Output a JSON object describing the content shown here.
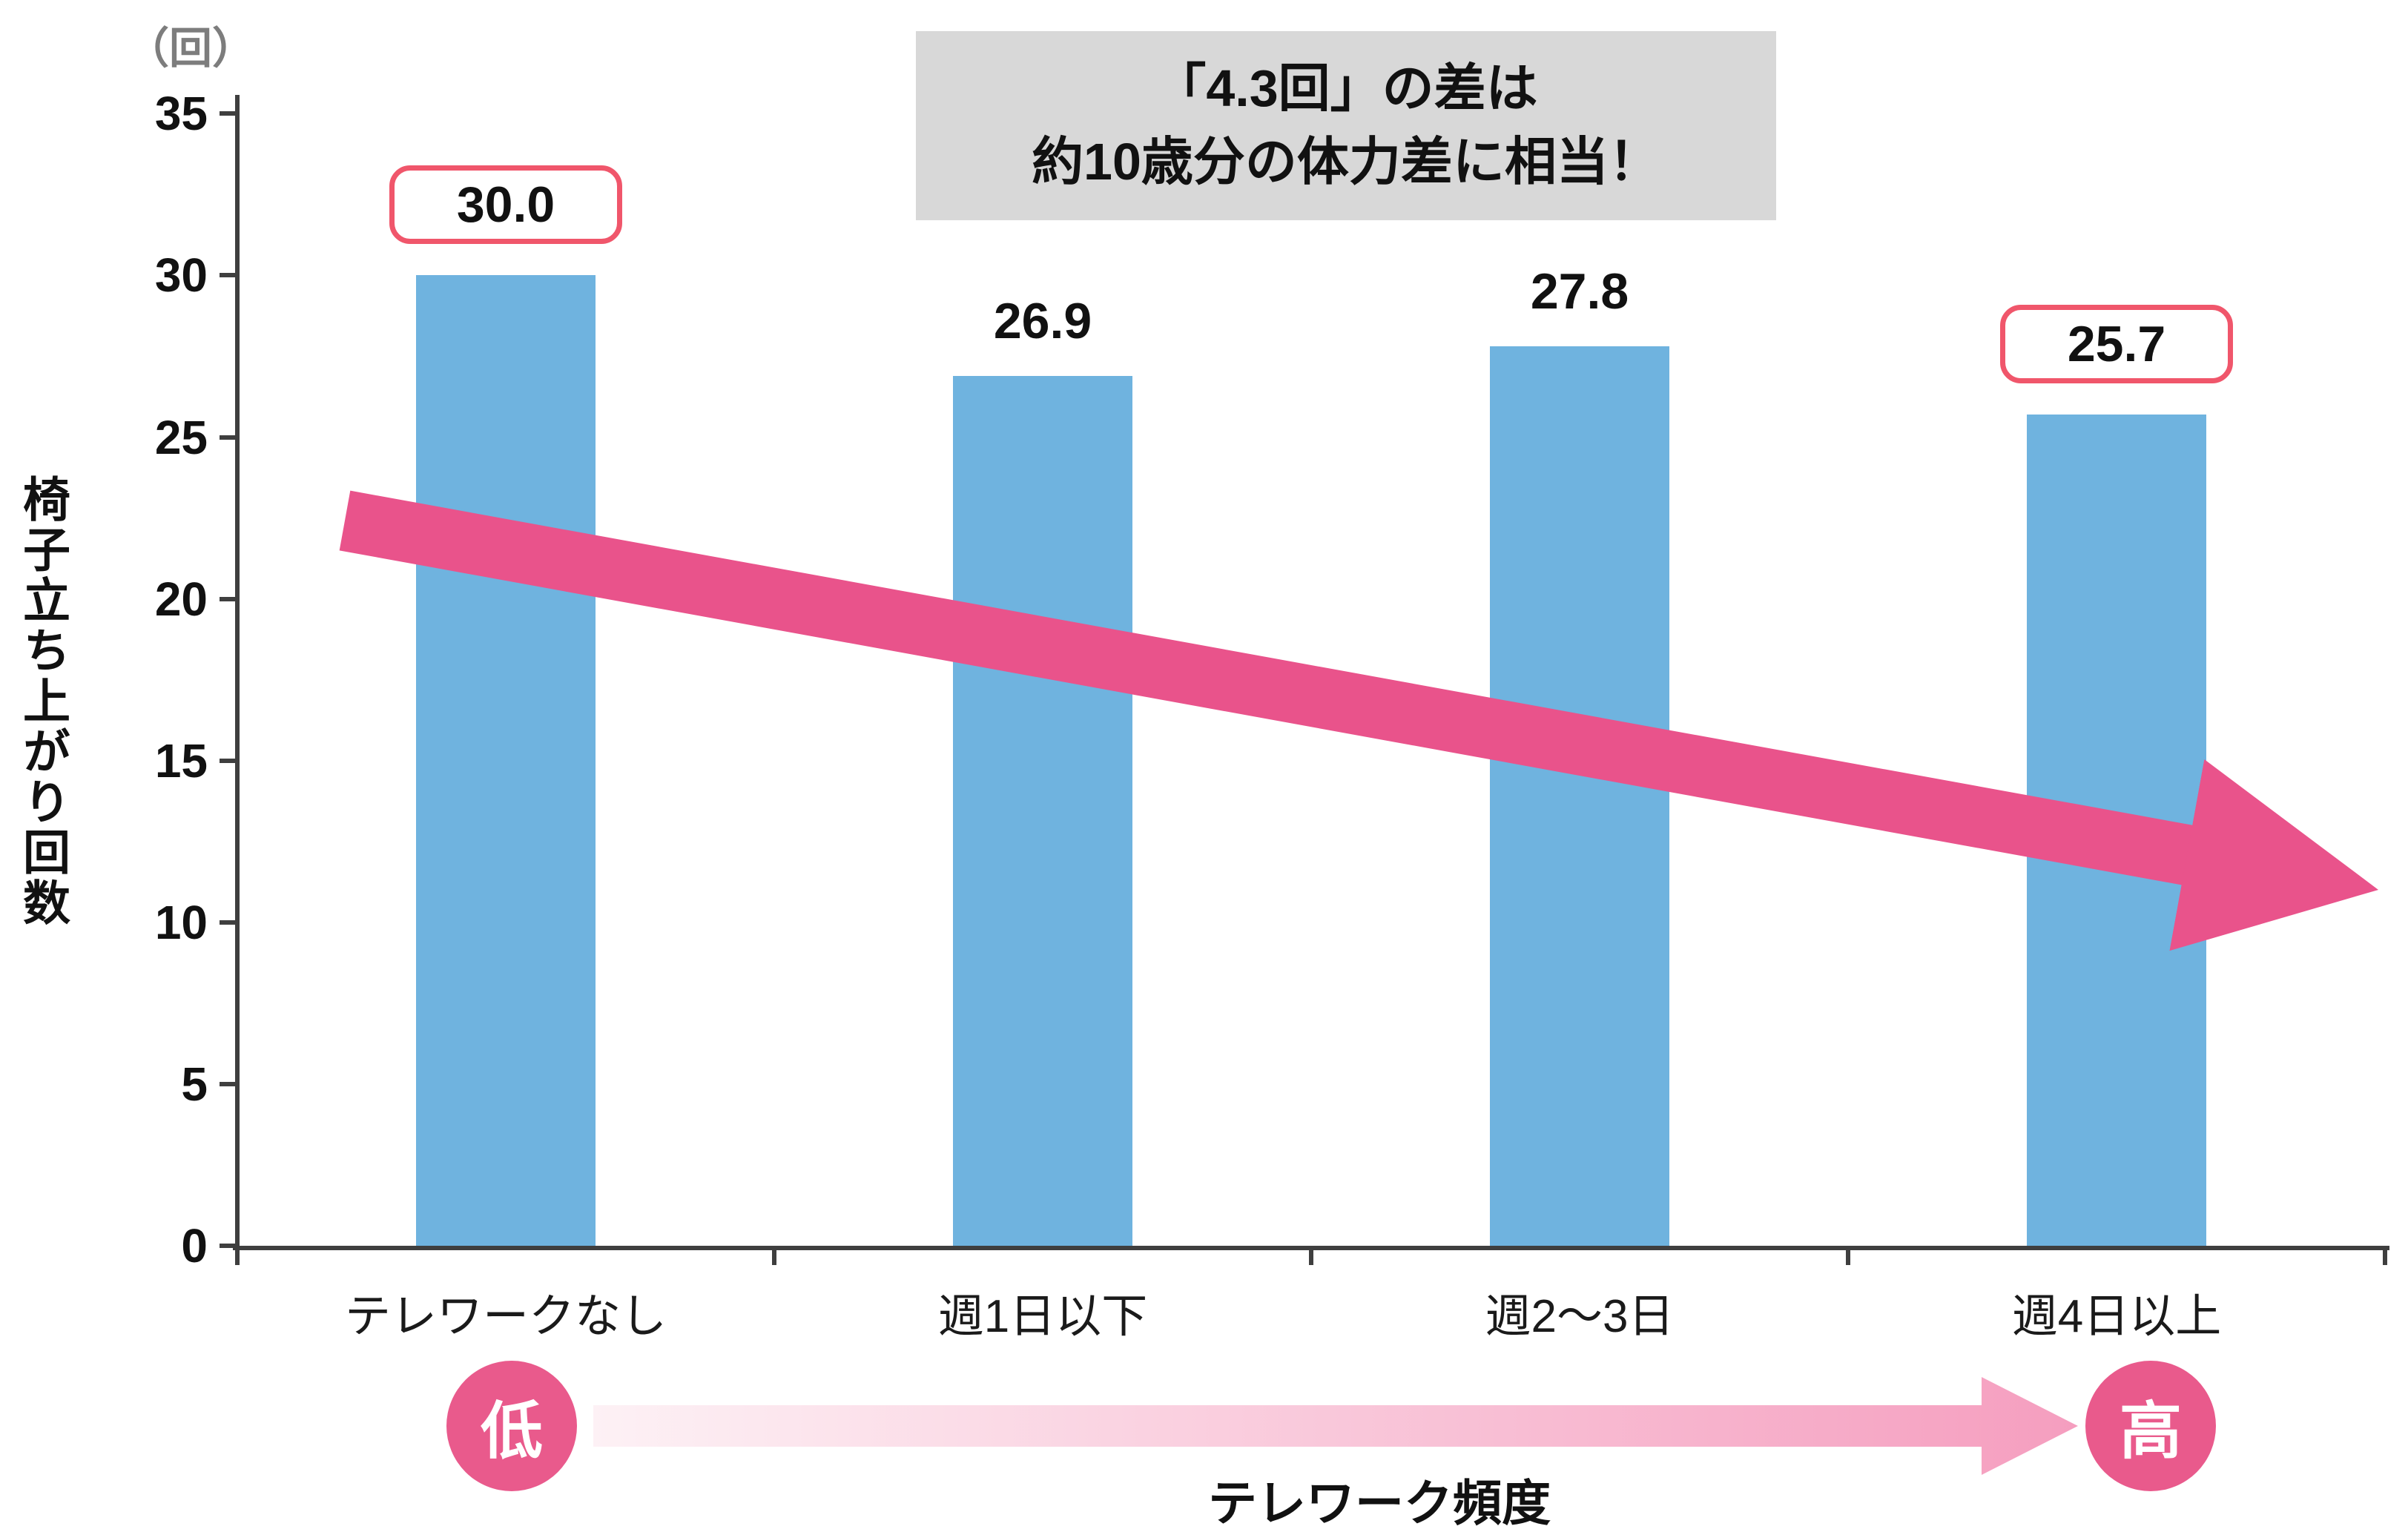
{
  "chart_data": {
    "type": "bar",
    "unit_label": "（回）",
    "ylabel": "椅子立ち上がり回数",
    "xlabel": "テレワーク頻度",
    "categories": [
      "テレワークなし",
      "週1日以下",
      "週2〜3日",
      "週4日以上"
    ],
    "values": [
      30.0,
      26.9,
      27.8,
      25.7
    ],
    "value_labels": [
      "30.0",
      "26.9",
      "27.8",
      "25.7"
    ],
    "highlighted": [
      true,
      false,
      false,
      true
    ],
    "yticks": [
      0,
      5,
      10,
      15,
      20,
      25,
      30,
      35
    ],
    "ylim": [
      0,
      35
    ],
    "grid": "off",
    "legend": "none",
    "bar_color": "#6fb3df",
    "trend_arrow_color": "#e9538b",
    "highlight_border_color": "#f0566b",
    "annotation": {
      "line1": "「4.3回」の差は",
      "line2": "約10歳分の体力差に相当！",
      "bg": "#d8d8d8"
    },
    "frequency_scale": {
      "low": "低",
      "high": "高",
      "badge_color": "#e95a8c"
    }
  }
}
